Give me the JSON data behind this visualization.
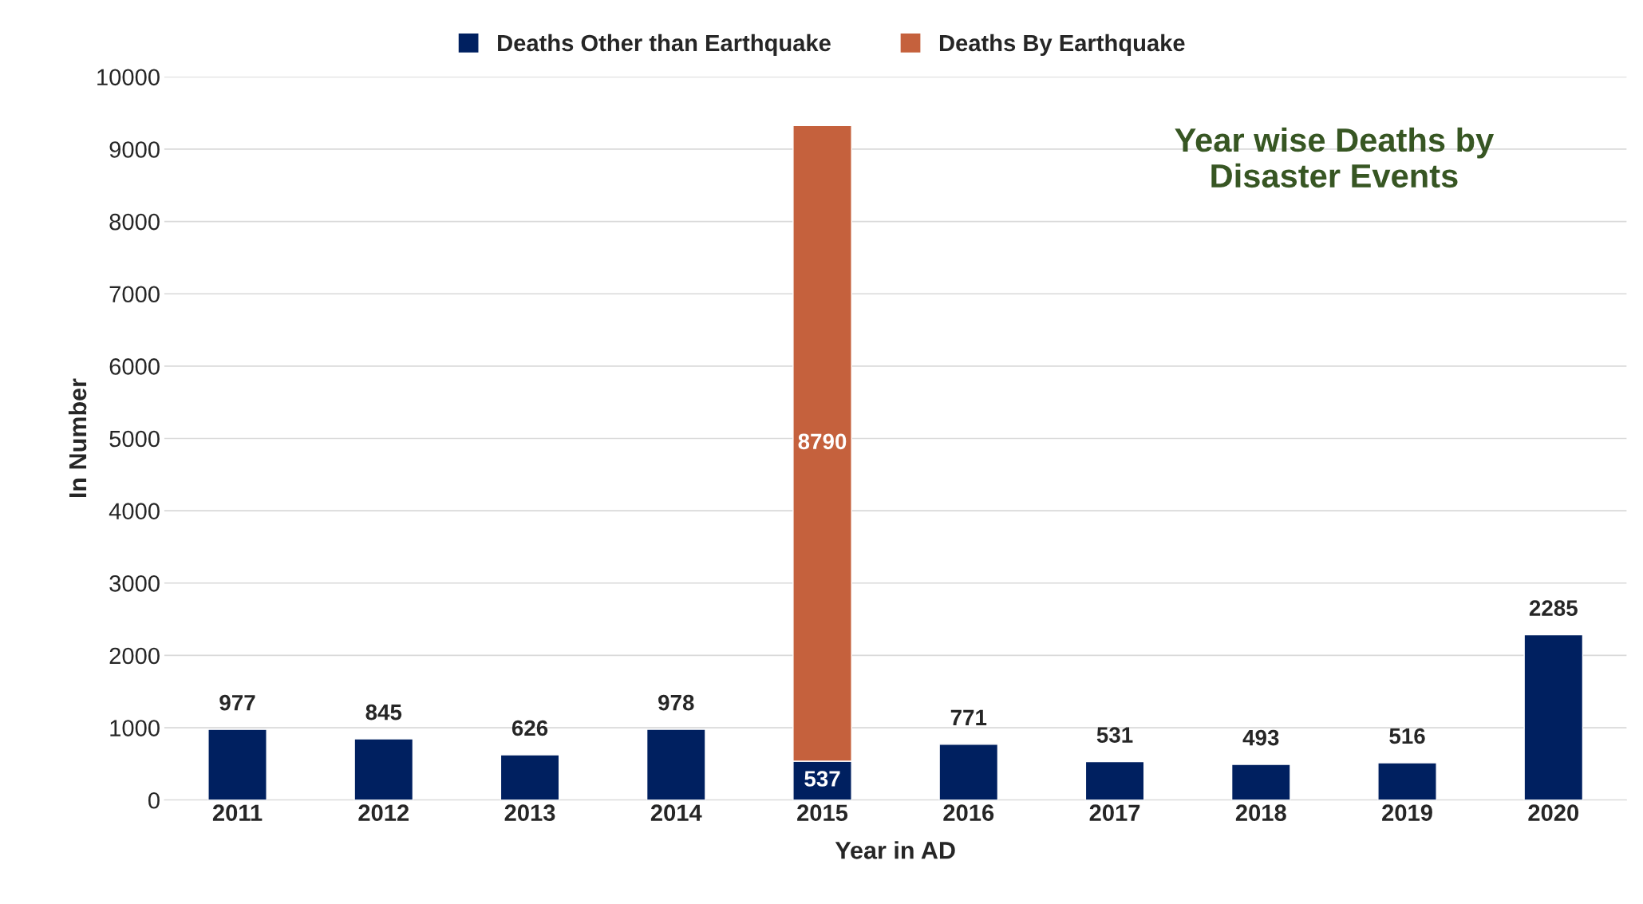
{
  "chart_data": {
    "type": "bar",
    "title": "Year wise Deaths by\nDisaster Events",
    "xlabel": "Year in AD",
    "ylabel": "In Number",
    "categories": [
      "2011",
      "2012",
      "2013",
      "2014",
      "2015",
      "2016",
      "2017",
      "2018",
      "2019",
      "2020"
    ],
    "stacked": true,
    "series": [
      {
        "name": "Deaths Other than Earthquake",
        "color": "#002060",
        "values": [
          977,
          845,
          626,
          978,
          537,
          771,
          531,
          493,
          516,
          2285
        ]
      },
      {
        "name": "Deaths By Earthquake",
        "color": "#c5613d",
        "values": [
          null,
          null,
          null,
          null,
          8790,
          null,
          null,
          null,
          null,
          null
        ]
      }
    ],
    "ylim": [
      0,
      10000
    ],
    "yticks": [
      0,
      1000,
      2000,
      3000,
      4000,
      5000,
      6000,
      7000,
      8000,
      9000,
      10000
    ],
    "grid": "y",
    "legend": "top",
    "data_labels": true
  }
}
